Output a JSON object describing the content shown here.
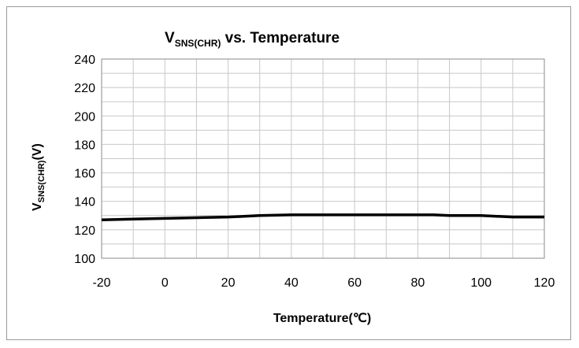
{
  "chart_data": {
    "type": "line",
    "title": {
      "main": "V",
      "sub": "SNS(CHR)",
      "rest": " vs. Temperature"
    },
    "xlabel": "Temperature(℃)",
    "ylabel": {
      "main": "V",
      "sub": "SNS(CHR)",
      "rest": "(V)"
    },
    "xlim": [
      -20,
      120
    ],
    "ylim": [
      100,
      240
    ],
    "x_ticks": [
      "-20",
      "0",
      "20",
      "40",
      "60",
      "80",
      "100",
      "120"
    ],
    "y_ticks": [
      "240",
      "220",
      "200",
      "180",
      "160",
      "140",
      "120",
      "100"
    ],
    "x_minor_step": 10,
    "y_minor_step": 10,
    "grid": true,
    "series": [
      {
        "x": [
          -20,
          -10,
          0,
          10,
          20,
          25,
          30,
          40,
          50,
          60,
          70,
          80,
          85,
          90,
          100,
          105,
          110,
          120
        ],
        "y": [
          127,
          127.5,
          128,
          128.5,
          129,
          129.5,
          130,
          130.5,
          130.5,
          130.5,
          130.5,
          130.5,
          130.5,
          130,
          130,
          129.5,
          129,
          129
        ]
      }
    ],
    "colors": {
      "line": "#000000",
      "grid": "#c8c8c8",
      "frame": "#9a9a9a"
    }
  }
}
